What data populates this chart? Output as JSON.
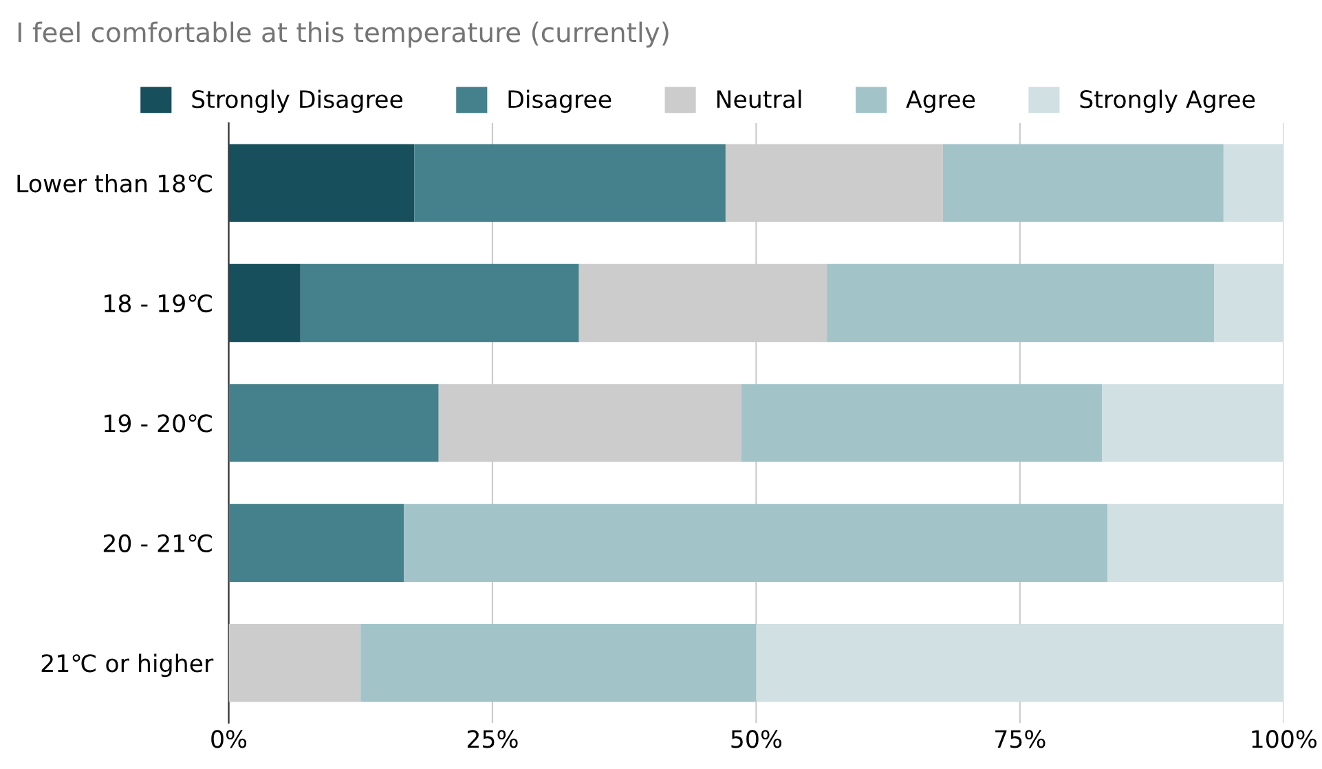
{
  "chart_data": {
    "type": "bar",
    "orientation": "horizontal",
    "stacked": true,
    "title": "I feel comfortable at this temperature (currently)",
    "categories": [
      "Lower than 18℃",
      "18 - 19℃",
      "19 - 20℃",
      "20 - 21℃",
      "21℃ or higher"
    ],
    "series": [
      {
        "name": "Strongly Disagree",
        "color": "#174f5c",
        "values": [
          17.6,
          6.8,
          0,
          0,
          0
        ]
      },
      {
        "name": "Disagree",
        "color": "#44818c",
        "values": [
          29.5,
          26.4,
          19.9,
          16.6,
          0
        ]
      },
      {
        "name": "Neutral",
        "color": "#cccccc",
        "values": [
          20.6,
          23.5,
          28.7,
          0,
          12.5
        ]
      },
      {
        "name": "Agree",
        "color": "#a2c4c9",
        "values": [
          26.6,
          36.7,
          34.2,
          66.7,
          37.5
        ]
      },
      {
        "name": "Strongly Agree",
        "color": "#d0e0e3",
        "values": [
          5.7,
          6.6,
          17.2,
          16.7,
          50
        ]
      }
    ],
    "xlim": [
      0,
      100
    ],
    "xticks": [
      {
        "value": 0,
        "label": "0%"
      },
      {
        "value": 25,
        "label": "25%"
      },
      {
        "value": 50,
        "label": "50%"
      },
      {
        "value": 75,
        "label": "75%"
      },
      {
        "value": 100,
        "label": "100%"
      }
    ],
    "grid": "x",
    "legend": "top"
  }
}
